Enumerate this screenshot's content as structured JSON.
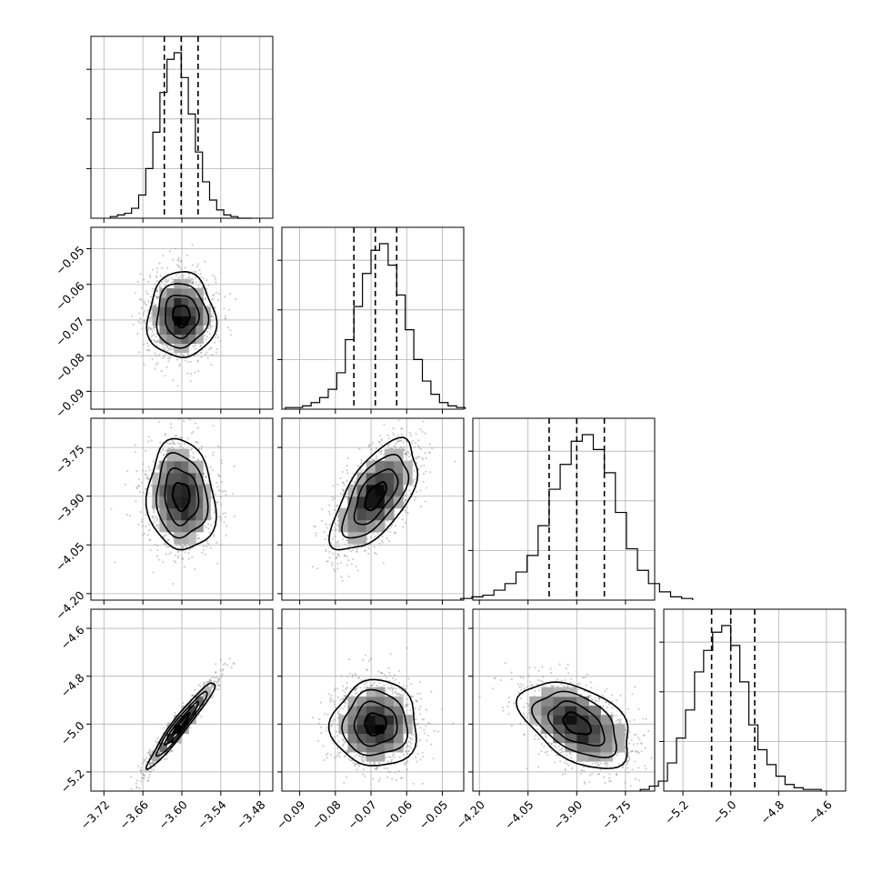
{
  "chart_data": {
    "type": "corner",
    "parameters": 4,
    "grid": true,
    "styles": {
      "frame_color": "#000000",
      "grid_color": "#b0b0b0",
      "line_color": "#000000",
      "scatter_color": "#8a8a8a"
    },
    "axes": [
      {
        "range": [
          -3.74,
          -3.46
        ],
        "ticks": [
          -3.72,
          -3.66,
          -3.6,
          -3.54,
          -3.48
        ],
        "tick_labels": [
          "−3.72",
          "−3.66",
          "−3.60",
          "−3.54",
          "−3.48"
        ]
      },
      {
        "range": [
          -0.095,
          -0.044
        ],
        "ticks": [
          -0.09,
          -0.08,
          -0.07,
          -0.06,
          -0.05
        ],
        "tick_labels": [
          "−0.09",
          "−0.08",
          "−0.07",
          "−0.06",
          "−0.05"
        ]
      },
      {
        "range": [
          -4.22,
          -3.66
        ],
        "ticks": [
          -4.2,
          -4.05,
          -3.9,
          -3.75
        ],
        "tick_labels": [
          "−4.20",
          "−4.05",
          "−3.90",
          "−3.75"
        ]
      },
      {
        "range": [
          -5.28,
          -4.52
        ],
        "ticks": [
          -5.2,
          -5.0,
          -4.8,
          -4.6
        ],
        "tick_labels": [
          "−5.2",
          "−5.0",
          "−4.8",
          "−4.6"
        ]
      }
    ],
    "histograms": [
      {
        "param": 0,
        "quantiles": [
          -3.627,
          -3.601,
          -3.575
        ],
        "counts": [
          1,
          2,
          3,
          6,
          14,
          30,
          52,
          76,
          96,
          100,
          85,
          63,
          40,
          22,
          11,
          5,
          2,
          1,
          0,
          0
        ]
      },
      {
        "param": 1,
        "quantiles": [
          -0.0748,
          -0.0688,
          -0.0628
        ],
        "counts": [
          1,
          1,
          2,
          4,
          7,
          12,
          22,
          42,
          62,
          82,
          96,
          100,
          87,
          69,
          48,
          30,
          17,
          9,
          4,
          2,
          1
        ]
      },
      {
        "param": 2,
        "quantiles": [
          -3.985,
          -3.9,
          -3.815
        ],
        "counts": [
          1,
          2,
          3,
          6,
          10,
          17,
          27,
          45,
          67,
          82,
          96,
          100,
          91,
          77,
          53,
          31,
          18,
          10,
          5,
          2,
          1
        ]
      },
      {
        "param": 3,
        "quantiles": [
          -5.08,
          -5.0,
          -4.9
        ],
        "counts": [
          1,
          3,
          6,
          17,
          32,
          49,
          72,
          85,
          96,
          100,
          88,
          66,
          40,
          25,
          16,
          9,
          4,
          2,
          1,
          1
        ]
      }
    ],
    "pairs": [
      {
        "x": 0,
        "y": 1,
        "center": [
          -3.601,
          -0.0688
        ],
        "sigma": [
          0.026,
          0.006
        ],
        "rho": 0.0
      },
      {
        "x": 0,
        "y": 2,
        "center": [
          -3.601,
          -3.9
        ],
        "sigma": [
          0.026,
          0.085
        ],
        "rho": -0.1
      },
      {
        "x": 1,
        "y": 2,
        "center": [
          -0.0688,
          -3.9
        ],
        "sigma": [
          0.006,
          0.085
        ],
        "rho": 0.62
      },
      {
        "x": 0,
        "y": 3,
        "center": [
          -3.601,
          -5.0
        ],
        "sigma": [
          0.026,
          0.09
        ],
        "rho": 0.96
      },
      {
        "x": 1,
        "y": 3,
        "center": [
          -0.0688,
          -5.0
        ],
        "sigma": [
          0.006,
          0.09
        ],
        "rho": 0.0
      },
      {
        "x": 2,
        "y": 3,
        "center": [
          -3.9,
          -5.0
        ],
        "sigma": [
          0.085,
          0.09
        ],
        "rho": -0.45
      }
    ]
  }
}
